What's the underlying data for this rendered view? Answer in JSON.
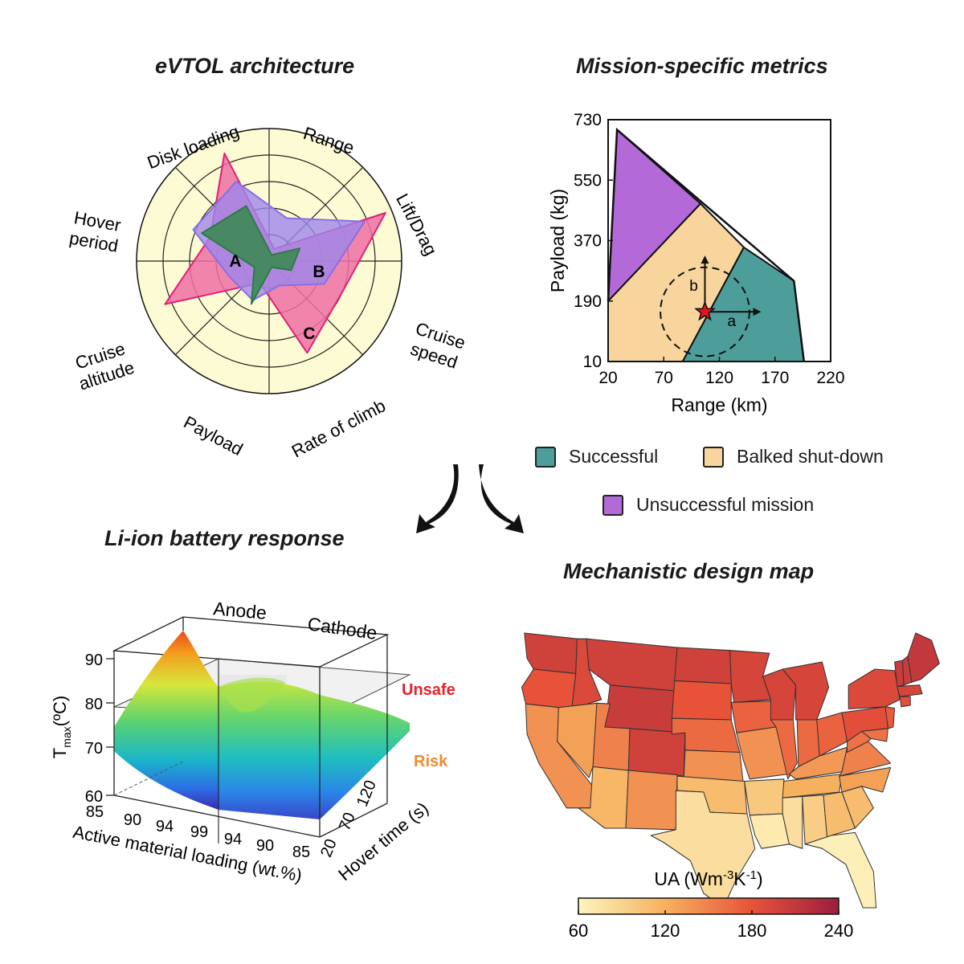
{
  "titles": {
    "radar": "eVTOL architecture",
    "mission": "Mission-specific metrics",
    "battery": "Li-ion battery response",
    "map": "Mechanistic design map"
  },
  "legend": {
    "successful": "Successful",
    "balked": "Balked shut-down",
    "unsuccessful": "Unsuccessful mission"
  },
  "colors": {
    "successful": "#4d9e9b",
    "balked": "#f8d59c",
    "unsuccessful": "#b36ad8",
    "radar_bg": "#fdfbd3",
    "radarA": "#3d8a57",
    "radarB": "#9d87ec",
    "radarC": "#ee6fa3",
    "unsafe": "#e8202a",
    "risk": "#ef8a2e",
    "title": "#1a1a1a"
  },
  "chart_data": [
    {
      "type": "radar",
      "title": "eVTOL architecture",
      "axes": [
        "Disk loading",
        "Range",
        "Lift/Drag",
        "Cruise speed",
        "Rate of climb",
        "Payload",
        "Cruise altitude",
        "Hover period"
      ],
      "rings": 5,
      "series": [
        {
          "name": "A",
          "values": [
            0.45,
            0.05,
            0.25,
            0.18,
            0.05,
            0.35,
            0.12,
            0.55
          ]
        },
        {
          "name": "B",
          "values": [
            0.65,
            0.35,
            0.78,
            0.45,
            0.2,
            0.32,
            0.32,
            0.62
          ]
        },
        {
          "name": "C",
          "values": [
            0.88,
            0.1,
            0.95,
            0.6,
            0.75,
            0.18,
            0.85,
            0.48
          ]
        }
      ]
    },
    {
      "type": "area",
      "title": "Mission-specific metrics",
      "xlabel": "Range (km)",
      "ylabel": "Payload (kg)",
      "xlim": [
        20,
        220
      ],
      "ylim": [
        10,
        730
      ],
      "xticks": [
        "20",
        "70",
        "120",
        "170",
        "220"
      ],
      "yticks": [
        "10",
        "190",
        "370",
        "550",
        "730"
      ],
      "regions": [
        {
          "name": "Unsuccessful mission",
          "points": [
            [
              28,
              700
            ],
            [
              103,
              480
            ],
            [
              20,
              190
            ]
          ]
        },
        {
          "name": "Balked shut-down",
          "points": [
            [
              20,
              190
            ],
            [
              103,
              480
            ],
            [
              142,
              350
            ],
            [
              87,
              10
            ],
            [
              20,
              10
            ]
          ]
        },
        {
          "name": "Successful",
          "points": [
            [
              142,
              350
            ],
            [
              187,
              250
            ],
            [
              196,
              10
            ],
            [
              87,
              10
            ]
          ]
        }
      ],
      "boundary": [
        [
          20,
          190
        ],
        [
          28,
          700
        ],
        [
          187,
          250
        ],
        [
          196,
          10
        ]
      ],
      "design_point": [
        107,
        158
      ],
      "circle_radius_km": 40,
      "arrow_labels": {
        "a": "a",
        "b": "b"
      }
    },
    {
      "type": "surface",
      "title": "Li-ion battery response",
      "zlabel_main": "T",
      "zlabel_sub": "max",
      "zlabel_unit": "(ºC)",
      "xlabel": "Active material loading (wt.%)",
      "ylabel": "Hover time (s)",
      "zticks": [
        "60",
        "70",
        "80",
        "90"
      ],
      "anode_ticks": [
        "85",
        "90",
        "94",
        "99"
      ],
      "cathode_ticks": [
        "94",
        "90",
        "85"
      ],
      "hover_ticks": [
        "20",
        "70",
        "120"
      ],
      "regions": [
        "Anode",
        "Cathode"
      ],
      "thresholds": [
        {
          "label": "Unsafe"
        },
        {
          "label": "Risk"
        }
      ]
    },
    {
      "type": "heatmap",
      "title": "Mechanistic design map",
      "colorbar_label_main": "UA (Wm",
      "colorbar_sup1": "-3",
      "colorbar_mid": "K",
      "colorbar_sup2": "-1",
      "colorbar_close": ")",
      "colorbar_range": [
        60,
        240
      ],
      "colorbar_ticks": [
        "60",
        "120",
        "180",
        "240"
      ],
      "states_ua": [
        {
          "name": "WA",
          "value": 200
        },
        {
          "name": "OR",
          "value": 180
        },
        {
          "name": "CA",
          "value": 140
        },
        {
          "name": "ID",
          "value": 190
        },
        {
          "name": "NV",
          "value": 130
        },
        {
          "name": "MT",
          "value": 200
        },
        {
          "name": "WY",
          "value": 205
        },
        {
          "name": "UT",
          "value": 150
        },
        {
          "name": "AZ",
          "value": 115
        },
        {
          "name": "CO",
          "value": 200
        },
        {
          "name": "NM",
          "value": 140
        },
        {
          "name": "ND",
          "value": 200
        },
        {
          "name": "SD",
          "value": 180
        },
        {
          "name": "NE",
          "value": 165
        },
        {
          "name": "KS",
          "value": 140
        },
        {
          "name": "OK",
          "value": 110
        },
        {
          "name": "TX",
          "value": 80
        },
        {
          "name": "MN",
          "value": 195
        },
        {
          "name": "IA",
          "value": 170
        },
        {
          "name": "MO",
          "value": 140
        },
        {
          "name": "AR",
          "value": 100
        },
        {
          "name": "LA",
          "value": 70
        },
        {
          "name": "WI",
          "value": 195
        },
        {
          "name": "IL",
          "value": 165
        },
        {
          "name": "MI",
          "value": 195
        },
        {
          "name": "IN",
          "value": 165
        },
        {
          "name": "OH",
          "value": 170
        },
        {
          "name": "KY",
          "value": 135
        },
        {
          "name": "TN",
          "value": 120
        },
        {
          "name": "MS",
          "value": 80
        },
        {
          "name": "AL",
          "value": 95
        },
        {
          "name": "GA",
          "value": 110
        },
        {
          "name": "FL",
          "value": 65
        },
        {
          "name": "SC",
          "value": 110
        },
        {
          "name": "NC",
          "value": 130
        },
        {
          "name": "VA",
          "value": 150
        },
        {
          "name": "WV",
          "value": 160
        },
        {
          "name": "PA",
          "value": 185
        },
        {
          "name": "NY",
          "value": 190
        },
        {
          "name": "ME",
          "value": 210
        },
        {
          "name": "NH",
          "value": 205
        },
        {
          "name": "VT",
          "value": 205
        },
        {
          "name": "MA",
          "value": 195
        },
        {
          "name": "CT",
          "value": 185
        },
        {
          "name": "NJ",
          "value": 175
        },
        {
          "name": "MD",
          "value": 160
        }
      ]
    }
  ]
}
